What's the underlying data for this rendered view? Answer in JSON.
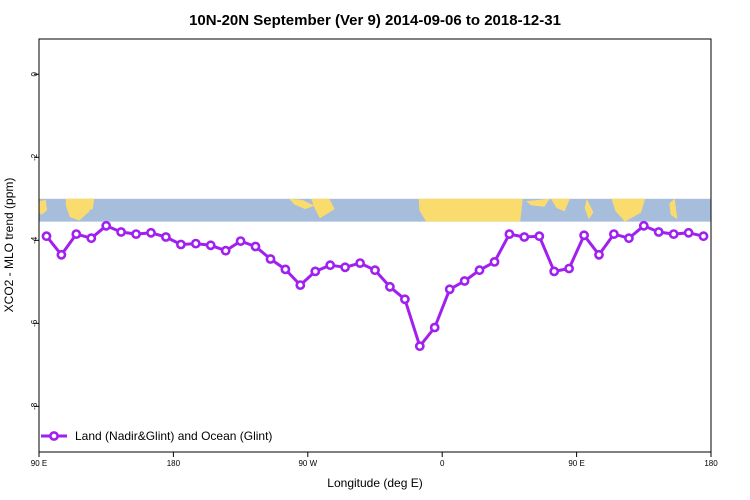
{
  "chart_data": {
    "type": "line",
    "title": "10N-20N September (Ver 9)   2014-09-06 to 2018-12-31",
    "xlabel": "Longitude (deg E)",
    "ylabel": "XCO2 - MLO trend (ppm)",
    "x_ticks": [
      {
        "value": 90,
        "label": "90 E"
      },
      {
        "value": 180,
        "label": "180"
      },
      {
        "value": 270,
        "label": "90 W"
      },
      {
        "value": 360,
        "label": "0"
      },
      {
        "value": 450,
        "label": "90 E"
      },
      {
        "value": 540,
        "label": "180"
      }
    ],
    "y_ticks": [
      {
        "value": 0,
        "label": "0"
      },
      {
        "value": -2,
        "label": "-2"
      },
      {
        "value": -4,
        "label": "-4"
      },
      {
        "value": -6,
        "label": "-6"
      },
      {
        "value": -8,
        "label": "-8"
      }
    ],
    "xlim": [
      90,
      540
    ],
    "ylim": [
      -9.1,
      0.85
    ],
    "map_band": {
      "ymin": -3.55,
      "ymax": -3.0,
      "ocean_color": "#a6bddb",
      "land_color": "#fadc6e"
    },
    "series": [
      {
        "name": "Land (Nadir&Glint) and Ocean (Glint)",
        "color": "#a020f0",
        "x": [
          95,
          105,
          115,
          125,
          135,
          145,
          155,
          165,
          175,
          185,
          195,
          205,
          215,
          225,
          235,
          245,
          255,
          265,
          275,
          285,
          295,
          305,
          315,
          325,
          335,
          345,
          355,
          365,
          375,
          385,
          395,
          405,
          415,
          425,
          435,
          445,
          455,
          465,
          475,
          485,
          495,
          505,
          515,
          525,
          535
        ],
        "y": [
          -3.9,
          -4.35,
          -3.85,
          -3.95,
          -3.65,
          -3.8,
          -3.85,
          -3.82,
          -3.92,
          -4.1,
          -4.08,
          -4.12,
          -4.25,
          -4.02,
          -4.15,
          -4.45,
          -4.7,
          -5.08,
          -4.75,
          -4.6,
          -4.65,
          -4.55,
          -4.72,
          -5.12,
          -5.42,
          -6.55,
          -6.1,
          -5.18,
          -4.98,
          -4.72,
          -4.52,
          -3.85,
          -3.92,
          -3.9,
          -4.75,
          -4.68,
          -3.88,
          -4.35,
          -3.85,
          -3.95,
          -3.65,
          -3.8,
          -3.85,
          -3.82,
          -3.9
        ]
      }
    ],
    "legend": {
      "placement": "bottom-left"
    }
  }
}
